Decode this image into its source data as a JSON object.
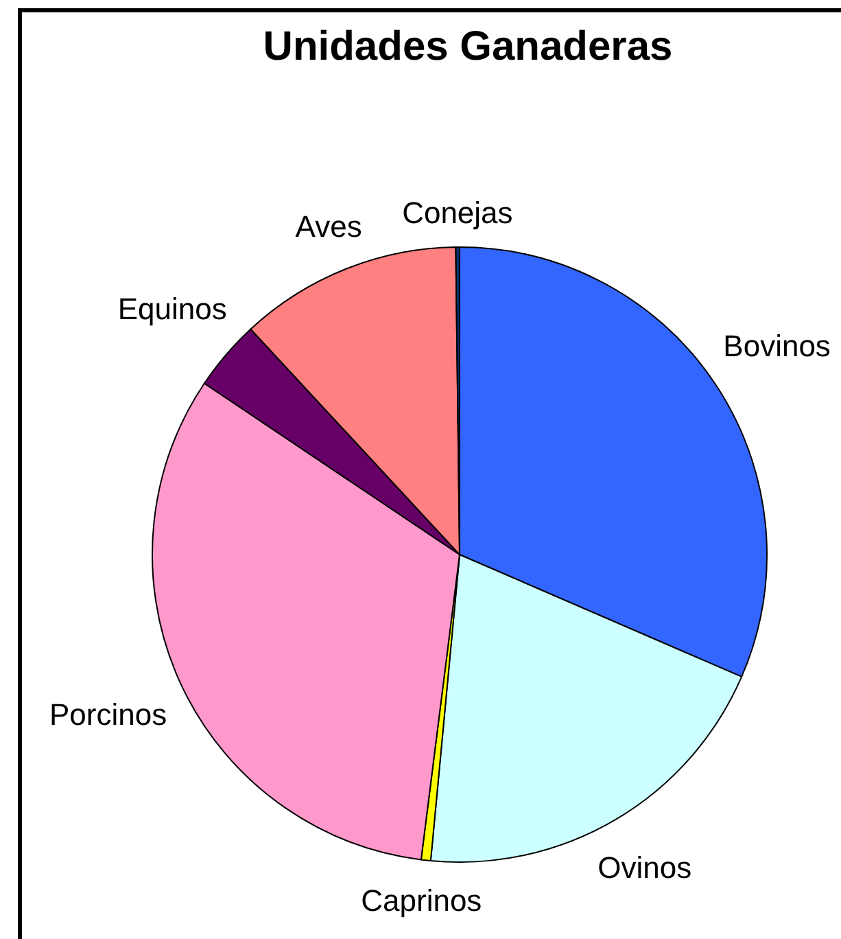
{
  "chart_data": {
    "type": "pie",
    "title": "Unidades Ganaderas",
    "categories": [
      "Bovinos",
      "Ovinos",
      "Caprinos",
      "Porcinos",
      "Equinos",
      "Aves",
      "Conejas"
    ],
    "values": [
      31.5,
      20.0,
      0.5,
      32.4,
      3.7,
      11.7,
      0.2
    ],
    "colors": [
      "#3366ff",
      "#ccffff",
      "#ffff00",
      "#ff99cc",
      "#660066",
      "#ff8080",
      "#003366"
    ]
  }
}
